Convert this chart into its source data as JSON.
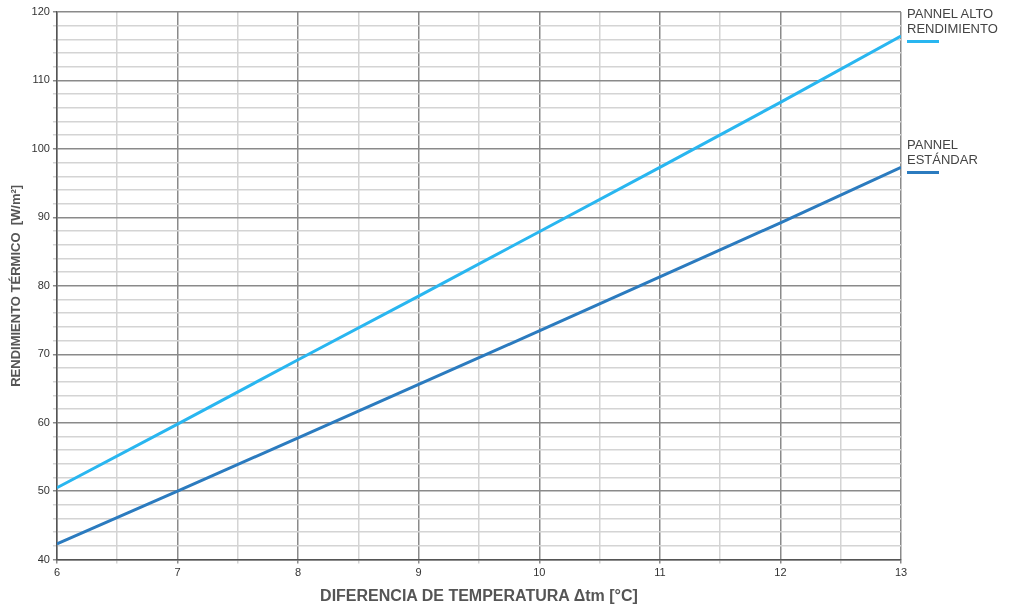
{
  "chart_data": {
    "type": "line",
    "xlabel": "DIFERENCIA DE TEMPERATURA Δtm [°C]",
    "ylabel": "RENDIMIENTO TÉRMICO  [W/m²]",
    "x": [
      6,
      7,
      8,
      9,
      10,
      11,
      12,
      13
    ],
    "series": [
      {
        "name": "PANNEL ALTO RENDIMIENTO",
        "color": "#29b6f0",
        "values": [
          50.5,
          59.8,
          69.2,
          78.5,
          87.9,
          97.3,
          106.8,
          116.5
        ]
      },
      {
        "name": "PANNEL ESTÁNDAR",
        "color": "#2b7bbf",
        "values": [
          42.3,
          50,
          57.8,
          65.6,
          73.4,
          81.3,
          89.2,
          97.3
        ]
      }
    ],
    "xlim": [
      6,
      13
    ],
    "ylim": [
      40,
      120
    ],
    "xticks": [
      6,
      {
        "value": 6.5,
        "label": null
      },
      7,
      {
        "value": 7.5,
        "label": null
      },
      8,
      {
        "value": 8.5,
        "label": null
      },
      9,
      {
        "value": 9.5,
        "label": null
      },
      10,
      {
        "value": 10.5,
        "label": null
      },
      11,
      {
        "value": 11.5,
        "label": null
      },
      12,
      {
        "value": 12.5,
        "label": null
      },
      13
    ],
    "yticks": [
      40,
      {
        "value": 42,
        "label": null
      },
      {
        "value": 44,
        "label": null
      },
      {
        "value": 46,
        "label": null
      },
      {
        "value": 48,
        "label": null
      },
      50,
      {
        "value": 52,
        "label": null
      },
      {
        "value": 54,
        "label": null
      },
      {
        "value": 56,
        "label": null
      },
      {
        "value": 58,
        "label": null
      },
      60,
      {
        "value": 62,
        "label": null
      },
      {
        "value": 64,
        "label": null
      },
      {
        "value": 66,
        "label": null
      },
      {
        "value": 68,
        "label": null
      },
      70,
      {
        "value": 72,
        "label": null
      },
      {
        "value": 74,
        "label": null
      },
      {
        "value": 76,
        "label": null
      },
      {
        "value": 78,
        "label": null
      },
      80,
      {
        "value": 82,
        "label": null
      },
      {
        "value": 84,
        "label": null
      },
      {
        "value": 86,
        "label": null
      },
      {
        "value": 88,
        "label": null
      },
      90,
      {
        "value": 92,
        "label": null
      },
      {
        "value": 94,
        "label": null
      },
      {
        "value": 96,
        "label": null
      },
      {
        "value": 98,
        "label": null
      },
      100,
      {
        "value": 102,
        "label": null
      },
      {
        "value": 104,
        "label": null
      },
      {
        "value": 106,
        "label": null
      },
      {
        "value": 108,
        "label": null
      },
      110,
      {
        "value": 112,
        "label": null
      },
      {
        "value": 114,
        "label": null
      },
      {
        "value": 116,
        "label": null
      },
      {
        "value": 118,
        "label": null
      },
      120
    ],
    "grid": true,
    "legend": "right",
    "marker": "none",
    "line_style": "solid"
  }
}
